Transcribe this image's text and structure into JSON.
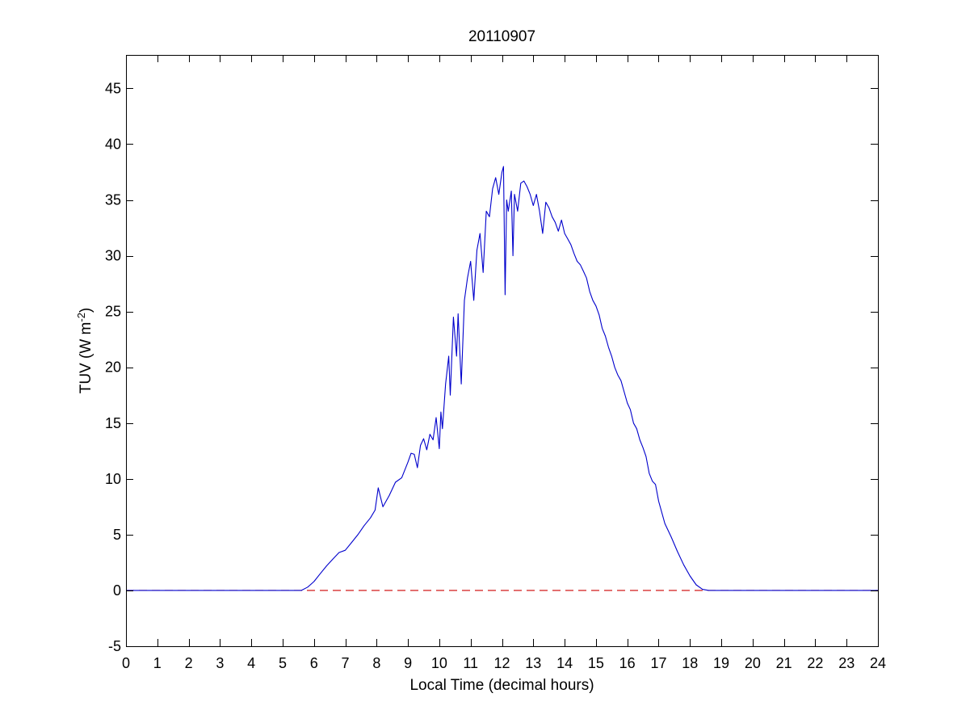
{
  "chart_data": {
    "type": "line",
    "title": "20110907",
    "xlabel": "Local Time (decimal hours)",
    "ylabel": {
      "main": "TUV (W m",
      "superscript": "-2",
      "close": ")"
    },
    "xlim": [
      0,
      24
    ],
    "ylim": [
      -5,
      48
    ],
    "xticks": [
      0,
      1,
      2,
      3,
      4,
      5,
      6,
      7,
      8,
      9,
      10,
      11,
      12,
      13,
      14,
      15,
      16,
      17,
      18,
      19,
      20,
      21,
      22,
      23,
      24
    ],
    "yticks": [
      -5,
      0,
      5,
      10,
      15,
      20,
      25,
      30,
      35,
      40,
      45
    ],
    "grid": false,
    "legend": false,
    "series": [
      {
        "color": "#0000cc",
        "style": "solid",
        "x": [
          0,
          5.6,
          5.8,
          6.0,
          6.2,
          6.4,
          6.6,
          6.8,
          7.0,
          7.2,
          7.4,
          7.6,
          7.8,
          7.95,
          8.05,
          8.2,
          8.4,
          8.6,
          8.8,
          9.0,
          9.1,
          9.2,
          9.3,
          9.4,
          9.5,
          9.6,
          9.7,
          9.8,
          9.9,
          10.0,
          10.05,
          10.1,
          10.2,
          10.3,
          10.35,
          10.45,
          10.55,
          10.6,
          10.7,
          10.8,
          10.9,
          11.0,
          11.1,
          11.2,
          11.3,
          11.4,
          11.5,
          11.6,
          11.7,
          11.8,
          11.9,
          12.0,
          12.05,
          12.1,
          12.15,
          12.2,
          12.3,
          12.35,
          12.4,
          12.5,
          12.6,
          12.7,
          12.8,
          12.9,
          13.0,
          13.1,
          13.2,
          13.3,
          13.4,
          13.5,
          13.6,
          13.7,
          13.8,
          13.9,
          14.0,
          14.1,
          14.2,
          14.3,
          14.4,
          14.5,
          14.6,
          14.7,
          14.8,
          14.9,
          15.0,
          15.1,
          15.2,
          15.3,
          15.4,
          15.5,
          15.6,
          15.7,
          15.8,
          15.9,
          16.0,
          16.1,
          16.2,
          16.3,
          16.4,
          16.5,
          16.6,
          16.7,
          16.8,
          16.9,
          17.0,
          17.2,
          17.4,
          17.6,
          17.8,
          18.0,
          18.2,
          18.4,
          18.6,
          18.7,
          24
        ],
        "y": [
          0,
          0,
          0.3,
          0.8,
          1.5,
          2.2,
          2.8,
          3.4,
          3.6,
          4.3,
          5.0,
          5.8,
          6.5,
          7.2,
          9.2,
          7.5,
          8.5,
          9.7,
          10.1,
          11.5,
          12.3,
          12.2,
          11.0,
          13.0,
          13.6,
          12.6,
          14.0,
          13.5,
          15.5,
          12.7,
          16.0,
          14.5,
          18.5,
          21.0,
          17.5,
          24.5,
          21.0,
          24.8,
          18.5,
          26.0,
          28.0,
          29.5,
          26.0,
          30.5,
          32.0,
          28.5,
          34.0,
          33.5,
          36.0,
          37.0,
          35.5,
          37.5,
          38.0,
          26.5,
          35.0,
          34.0,
          35.8,
          30.0,
          35.5,
          34.0,
          36.5,
          36.7,
          36.2,
          35.5,
          34.5,
          35.5,
          34.0,
          32.0,
          34.8,
          34.3,
          33.5,
          33.0,
          32.2,
          33.2,
          32.0,
          31.5,
          31.0,
          30.2,
          29.5,
          29.2,
          28.6,
          28.0,
          26.8,
          26.0,
          25.5,
          24.7,
          23.5,
          22.8,
          21.8,
          21.0,
          20.0,
          19.3,
          18.8,
          17.8,
          16.8,
          16.2,
          15.0,
          14.5,
          13.5,
          12.8,
          12.0,
          10.5,
          9.8,
          9.5,
          8.0,
          6.0,
          4.8,
          3.5,
          2.3,
          1.3,
          0.5,
          0.1,
          0,
          0,
          0
        ]
      },
      {
        "color": "#cc0000",
        "style": "dashed",
        "x": [
          0,
          24
        ],
        "y": [
          0,
          0
        ]
      }
    ]
  }
}
